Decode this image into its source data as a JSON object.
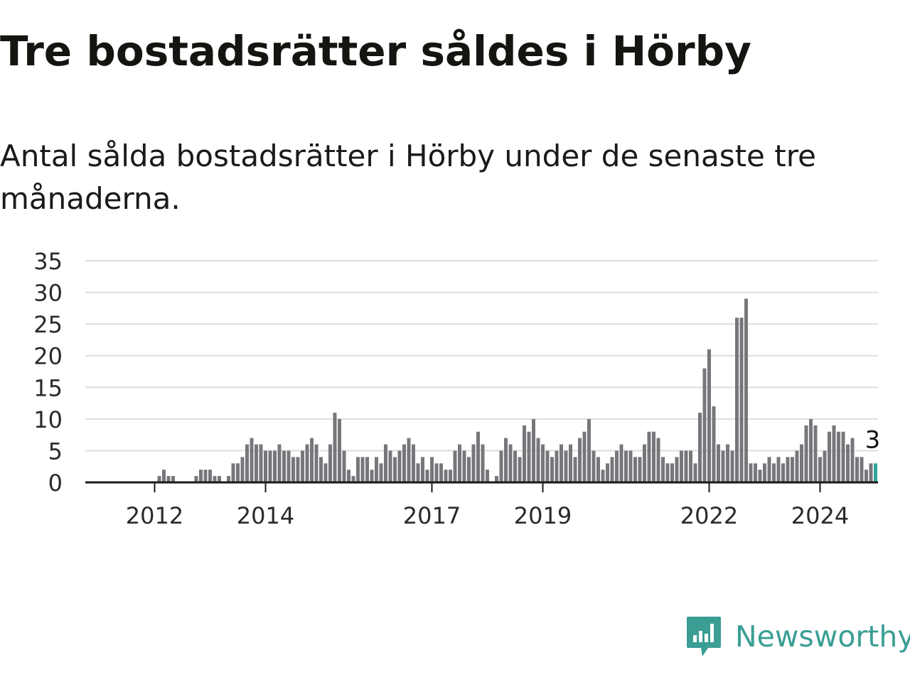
{
  "title": "Tre bostadsrätter såldes i Hörby",
  "subtitle": "Antal sålda bostadsrätter i Hörby under de senaste tre månaderna.",
  "brand": {
    "name": "Newsworthy",
    "icon": "newsworthy-logo-icon"
  },
  "colors": {
    "bar": "#77767b",
    "highlight": "#2fa39b",
    "grid": "#dddddd",
    "axis": "#1a1a17",
    "brand": "#3a9e94"
  },
  "chart_data": {
    "type": "bar",
    "title": "",
    "xlabel": "",
    "ylabel": "",
    "ylim": [
      0,
      35
    ],
    "yticks": [
      "0",
      "5",
      "10",
      "15",
      "20",
      "25",
      "30",
      "35"
    ],
    "xticks": [
      {
        "label": "2012",
        "index": 7
      },
      {
        "label": "2014",
        "index": 31
      },
      {
        "label": "2017",
        "index": 67
      },
      {
        "label": "2019",
        "index": 91
      },
      {
        "label": "2022",
        "index": 127
      },
      {
        "label": "2024",
        "index": 151
      }
    ],
    "grid": true,
    "highlight_label": "3",
    "values": [
      0,
      0,
      0,
      0,
      0,
      0,
      0,
      0,
      1,
      2,
      1,
      1,
      0,
      0,
      0,
      0,
      1,
      2,
      2,
      2,
      1,
      1,
      0,
      1,
      3,
      3,
      4,
      6,
      7,
      6,
      6,
      5,
      5,
      5,
      6,
      5,
      5,
      4,
      4,
      5,
      6,
      7,
      6,
      4,
      3,
      6,
      11,
      10,
      5,
      2,
      1,
      4,
      4,
      4,
      2,
      4,
      3,
      6,
      5,
      4,
      5,
      6,
      7,
      6,
      3,
      4,
      2,
      4,
      3,
      3,
      2,
      2,
      5,
      6,
      5,
      4,
      6,
      8,
      6,
      2,
      0,
      1,
      5,
      7,
      6,
      5,
      4,
      9,
      8,
      10,
      7,
      6,
      5,
      4,
      5,
      6,
      5,
      6,
      4,
      7,
      8,
      10,
      5,
      4,
      2,
      3,
      4,
      5,
      6,
      5,
      5,
      4,
      4,
      6,
      8,
      8,
      7,
      4,
      3,
      3,
      4,
      5,
      5,
      5,
      3,
      11,
      18,
      21,
      12,
      6,
      5,
      6,
      5,
      26,
      26,
      29,
      3,
      3,
      2,
      3,
      4,
      3,
      4,
      3,
      4,
      4,
      5,
      6,
      9,
      10,
      9,
      4,
      5,
      8,
      9,
      8,
      8,
      6,
      7,
      4,
      4,
      2,
      3,
      3
    ]
  }
}
